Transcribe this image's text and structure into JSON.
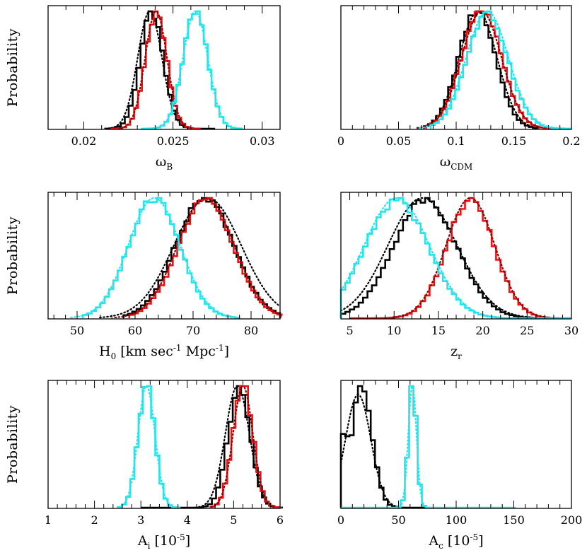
{
  "colors": {
    "black": "#000000",
    "red": "#ee1111",
    "cyan": "#22e5ee",
    "dotted": "#000000",
    "dotted_red": "#8b0000",
    "dotted_cyan": "#22e5ee"
  },
  "chart_data": [
    {
      "type": "histogram",
      "ylabel": "Probability",
      "xlabel": "ω",
      "xlabel_sub": "B",
      "xlim": [
        0.018,
        0.031
      ],
      "xticks": [
        0.02,
        0.025,
        0.03
      ],
      "xticklabels": [
        "0.02",
        "0.025",
        "0.03"
      ],
      "minor_step": 0.001,
      "series": [
        {
          "color": "black",
          "dist": [
            {
              "mu": 0.0238,
              "sigma": 0.00065,
              "w": 1
            }
          ],
          "range": [
            0.0212,
            0.0272
          ],
          "bin": 0.00022,
          "smooth": {
            "mu": 0.0237,
            "sigma": 0.00068
          }
        },
        {
          "color": "red",
          "dist": [
            {
              "mu": 0.02405,
              "sigma": 0.0006,
              "w": 1
            }
          ],
          "range": [
            0.0215,
            0.0265
          ],
          "bin": 0.00022
        },
        {
          "color": "cyan",
          "dist": [
            {
              "mu": 0.02625,
              "sigma": 0.00068,
              "w": 1
            }
          ],
          "range": [
            0.0232,
            0.0288
          ],
          "bin": 0.00022
        }
      ]
    },
    {
      "type": "histogram",
      "ylabel": "",
      "xlabel": "ω",
      "xlabel_sub": "CDM",
      "xlim": [
        0,
        0.2
      ],
      "xticks": [
        0,
        0.05,
        0.1,
        0.15,
        0.2
      ],
      "xticklabels": [
        "0",
        "0.05",
        "0.1",
        "0.15",
        "0.2"
      ],
      "minor_step": 0.01,
      "series": [
        {
          "color": "black",
          "dist": [
            {
              "mu": 0.118,
              "sigma": 0.016,
              "w": 1
            }
          ],
          "range": [
            0.072,
            0.168
          ],
          "bin": 0.0035,
          "smooth": {
            "mu": 0.119,
            "sigma": 0.0165
          }
        },
        {
          "color": "red",
          "dist": [
            {
              "mu": 0.122,
              "sigma": 0.017,
              "w": 1
            }
          ],
          "range": [
            0.074,
            0.18
          ],
          "bin": 0.0035
        },
        {
          "color": "cyan",
          "dist": [
            {
              "mu": 0.127,
              "sigma": 0.018,
              "w": 1
            }
          ],
          "range": [
            0.078,
            0.198
          ],
          "bin": 0.0035
        }
      ]
    },
    {
      "type": "histogram",
      "ylabel": "Probability",
      "xlabel": "H",
      "xlabel_sub": "0",
      "xlabel_rest": " [km sec",
      "xlabel_sup1": "-1",
      "xlabel_rest2": " Mpc",
      "xlabel_sup2": "-1",
      "xlabel_end": "]",
      "xlim": [
        45,
        85
      ],
      "xticks": [
        50,
        60,
        70,
        80
      ],
      "xticklabels": [
        "50",
        "60",
        "70",
        "80"
      ],
      "minor_step": 2,
      "series": [
        {
          "color": "black",
          "dist": [
            {
              "mu": 72,
              "sigma": 5.0,
              "w": 1
            }
          ],
          "range": [
            58,
            85
          ],
          "bin": 0.75,
          "smooth": {
            "mu": 72.5,
            "sigma": 5.8
          }
        },
        {
          "color": "red",
          "dist": [
            {
              "mu": 72.2,
              "sigma": 4.8,
              "w": 1
            }
          ],
          "range": [
            59,
            85
          ],
          "bin": 0.75
        },
        {
          "color": "cyan",
          "dist": [
            {
              "mu": 63.3,
              "sigma": 4.4,
              "w": 1
            }
          ],
          "range": [
            51,
            78
          ],
          "bin": 0.75
        }
      ]
    },
    {
      "type": "histogram",
      "ylabel": "",
      "xlabel": "z",
      "xlabel_sub": "r",
      "xlim": [
        4,
        30
      ],
      "xticks": [
        5,
        10,
        15,
        20,
        25,
        30
      ],
      "xticklabels": [
        "5",
        "10",
        "15",
        "20",
        "25",
        "30"
      ],
      "minor_step": 1,
      "series": [
        {
          "color": "black",
          "dist": [
            {
              "mu": 13.5,
              "sigma": 3.6,
              "w": 1
            }
          ],
          "range": [
            4,
            30
          ],
          "bin": 0.5,
          "smooth": {
            "mu": 13.2,
            "sigma": 3.9
          }
        },
        {
          "color": "red",
          "dist": [
            {
              "mu": 18.6,
              "sigma": 2.7,
              "w": 1
            }
          ],
          "range": [
            5,
            30
          ],
          "bin": 0.5
        },
        {
          "color": "cyan",
          "dist": [
            {
              "mu": 10.3,
              "sigma": 3.6,
              "w": 1
            }
          ],
          "range": [
            4,
            30
          ],
          "bin": 0.5
        }
      ]
    },
    {
      "type": "histogram",
      "ylabel": "Probability",
      "xlabel": "A",
      "xlabel_sub": "i",
      "xlabel_rest": " [10",
      "xlabel_sup1": "-5",
      "xlabel_end": "]",
      "xlim": [
        1,
        6
      ],
      "xticks": [
        1,
        2,
        3,
        4,
        5,
        6
      ],
      "xticklabels": [
        "1",
        "2",
        "3",
        "4",
        "5",
        "6"
      ],
      "minor_step": 0.2,
      "series": [
        {
          "color": "black",
          "dist": [
            {
              "mu": 5.12,
              "sigma": 0.24,
              "w": 1
            }
          ],
          "range": [
            3.0,
            6.0
          ],
          "bin": 0.09,
          "smooth": {
            "mu": 5.08,
            "sigma": 0.26
          }
        },
        {
          "color": "red",
          "dist": [
            {
              "mu": 5.2,
              "sigma": 0.21,
              "w": 1
            }
          ],
          "range": [
            4.5,
            6.0
          ],
          "bin": 0.09
        },
        {
          "color": "cyan",
          "dist": [
            {
              "mu": 3.12,
              "sigma": 0.18,
              "w": 1
            }
          ],
          "range": [
            2.5,
            3.8
          ],
          "bin": 0.09
        }
      ]
    },
    {
      "type": "histogram",
      "ylabel": "",
      "xlabel": "A",
      "xlabel_sub": "c",
      "xlabel_rest": " [10",
      "xlabel_sup1": "-5",
      "xlabel_end": "]",
      "xlim": [
        0,
        200
      ],
      "xticks": [
        0,
        50,
        100,
        150,
        200
      ],
      "xticklabels": [
        "0",
        "50",
        "100",
        "150",
        "200"
      ],
      "minor_step": 10,
      "series": [
        {
          "color": "black",
          "dist": [
            {
              "mu": 18,
              "sigma": 9,
              "w": 1
            }
          ],
          "range": [
            0,
            72
          ],
          "bin": 3.7,
          "smooth": {
            "mu": 15,
            "sigma": 11
          },
          "left_floor": 0.6
        },
        {
          "color": "cyan",
          "dist": [
            {
              "mu": 62,
              "sigma": 3.5,
              "w": 1
            }
          ],
          "range": [
            0,
            150
          ],
          "bin": 3.7
        }
      ]
    }
  ]
}
